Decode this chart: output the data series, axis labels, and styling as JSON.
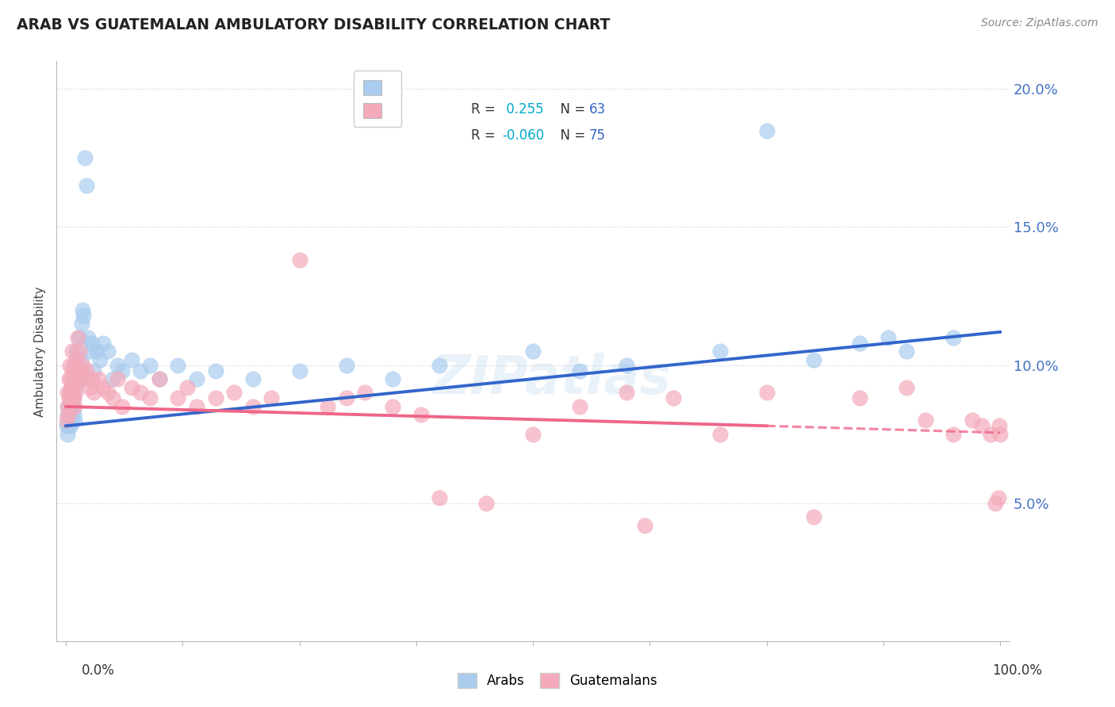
{
  "title": "ARAB VS GUATEMALAN AMBULATORY DISABILITY CORRELATION CHART",
  "source": "Source: ZipAtlas.com",
  "ylabel": "Ambulatory Disability",
  "arab_R": 0.255,
  "arab_N": 63,
  "guatemalan_R": -0.06,
  "guatemalan_N": 75,
  "arab_color": "#AACCEE",
  "guatemalan_color": "#F4AABB",
  "arab_line_color": "#3366CC",
  "guatemalan_line_color": "#EE6688",
  "legend_R_color": "#00BBCC",
  "legend_N_color": "#3366CC",
  "arab_x": [
    0.1,
    0.15,
    0.2,
    0.25,
    0.3,
    0.35,
    0.4,
    0.45,
    0.5,
    0.55,
    0.6,
    0.65,
    0.7,
    0.75,
    0.8,
    0.85,
    0.9,
    0.95,
    1.0,
    1.1,
    1.2,
    1.3,
    1.4,
    1.5,
    1.6,
    1.7,
    1.8,
    1.9,
    2.0,
    2.2,
    2.4,
    2.6,
    2.8,
    3.0,
    3.3,
    3.6,
    4.0,
    4.5,
    5.0,
    5.5,
    6.0,
    7.0,
    8.0,
    9.0,
    10.0,
    12.0,
    14.0,
    16.0,
    20.0,
    25.0,
    30.0,
    35.0,
    40.0,
    50.0,
    55.0,
    60.0,
    70.0,
    75.0,
    80.0,
    85.0,
    88.0,
    90.0,
    95.0
  ],
  "arab_y": [
    7.8,
    8.2,
    7.5,
    8.5,
    8.0,
    7.8,
    9.0,
    8.5,
    7.8,
    8.8,
    8.0,
    9.2,
    8.5,
    9.0,
    8.8,
    8.2,
    9.5,
    8.0,
    9.2,
    10.5,
    10.0,
    9.8,
    11.0,
    9.5,
    10.2,
    11.5,
    12.0,
    11.8,
    17.5,
    16.5,
    11.0,
    10.5,
    10.8,
    9.8,
    10.5,
    10.2,
    10.8,
    10.5,
    9.5,
    10.0,
    9.8,
    10.2,
    9.8,
    10.0,
    9.5,
    10.0,
    9.5,
    9.8,
    9.5,
    9.8,
    10.0,
    9.5,
    10.0,
    10.5,
    9.8,
    10.0,
    10.5,
    18.5,
    10.2,
    10.8,
    11.0,
    10.5,
    11.0
  ],
  "guatemalan_x": [
    0.1,
    0.15,
    0.2,
    0.25,
    0.3,
    0.35,
    0.4,
    0.45,
    0.5,
    0.55,
    0.6,
    0.65,
    0.7,
    0.75,
    0.8,
    0.85,
    0.9,
    0.95,
    1.0,
    1.1,
    1.2,
    1.3,
    1.4,
    1.5,
    1.6,
    1.8,
    2.0,
    2.2,
    2.5,
    2.8,
    3.0,
    3.5,
    4.0,
    4.5,
    5.0,
    5.5,
    6.0,
    7.0,
    8.0,
    9.0,
    10.0,
    12.0,
    13.0,
    14.0,
    16.0,
    18.0,
    20.0,
    22.0,
    25.0,
    28.0,
    30.0,
    32.0,
    35.0,
    38.0,
    40.0,
    45.0,
    50.0,
    55.0,
    60.0,
    62.0,
    65.0,
    70.0,
    75.0,
    80.0,
    85.0,
    90.0,
    92.0,
    95.0,
    97.0,
    98.0,
    99.0,
    99.5,
    99.8,
    99.9,
    100.0
  ],
  "guatemalan_y": [
    8.0,
    8.5,
    9.0,
    8.2,
    9.5,
    8.8,
    9.0,
    10.0,
    9.5,
    8.8,
    9.2,
    10.5,
    9.8,
    9.2,
    8.8,
    10.0,
    9.5,
    8.5,
    9.0,
    10.2,
    9.8,
    11.0,
    10.5,
    9.8,
    9.5,
    10.0,
    9.5,
    9.8,
    9.2,
    9.5,
    9.0,
    9.5,
    9.2,
    9.0,
    8.8,
    9.5,
    8.5,
    9.2,
    9.0,
    8.8,
    9.5,
    8.8,
    9.2,
    8.5,
    8.8,
    9.0,
    8.5,
    8.8,
    13.8,
    8.5,
    8.8,
    9.0,
    8.5,
    8.2,
    5.2,
    5.0,
    7.5,
    8.5,
    9.0,
    4.2,
    8.8,
    7.5,
    9.0,
    4.5,
    8.8,
    9.2,
    8.0,
    7.5,
    8.0,
    7.8,
    7.5,
    5.0,
    5.2,
    7.8,
    7.5
  ],
  "ylim_min": 0,
  "ylim_max": 21,
  "xlim_min": -1,
  "xlim_max": 101,
  "yticks": [
    5.0,
    10.0,
    15.0,
    20.0
  ],
  "ytick_labels": [
    "5.0%",
    "10.0%",
    "15.0%",
    "20.0%"
  ],
  "arab_line_x0": 0,
  "arab_line_y0": 7.8,
  "arab_line_x1": 100,
  "arab_line_y1": 11.2,
  "guat_line_x0": 0,
  "guat_line_y0": 8.5,
  "guat_line_x1": 75,
  "guat_line_y1": 7.8,
  "guat_dash_x0": 75,
  "guat_dash_y0": 7.8,
  "guat_dash_x1": 100,
  "guat_dash_y1": 7.55,
  "background_color": "#FFFFFF",
  "grid_color": "#CCCCCC"
}
